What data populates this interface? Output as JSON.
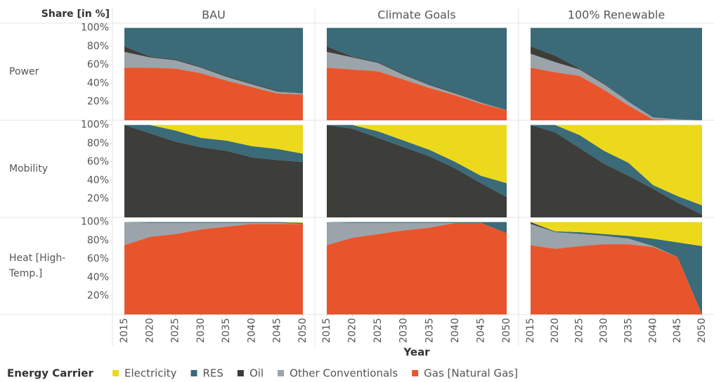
{
  "chart_data": {
    "type": "stacked_area",
    "y_axis_title": "Share [in %]",
    "x_axis_title": "Year",
    "legend_title": "Energy Carrier",
    "columns": [
      "BAU",
      "Climate Goals",
      "100% Renewable"
    ],
    "rows": [
      "Power",
      "Mobility",
      "Heat [High-Temp.]"
    ],
    "x": [
      2015,
      2020,
      2025,
      2030,
      2035,
      2040,
      2045,
      2050
    ],
    "xticks": [
      2015,
      2020,
      2025,
      2030,
      2035,
      2040,
      2045,
      2050
    ],
    "ylim": [
      0,
      105
    ],
    "yticks": [
      {
        "value": 20,
        "label": "20%"
      },
      {
        "value": 40,
        "label": "40%"
      },
      {
        "value": 60,
        "label": "60%"
      },
      {
        "value": 80,
        "label": "80%"
      },
      {
        "value": 100,
        "label": "100%"
      }
    ],
    "grid": false,
    "series": [
      {
        "name": "Electricity",
        "color": "#ecd91c",
        "values": [
          [
            0,
            0,
            0,
            0,
            0,
            0,
            0,
            0
          ],
          [
            0,
            0,
            0,
            0,
            0,
            0,
            0,
            0
          ],
          [
            0,
            0,
            0,
            0,
            0,
            0,
            0,
            0
          ],
          [
            0,
            0,
            6,
            14,
            17,
            23,
            26,
            31
          ],
          [
            0,
            0,
            7,
            17,
            27,
            40,
            55,
            63
          ],
          [
            0,
            0,
            11,
            28,
            41,
            65,
            77,
            87
          ],
          [
            0,
            0,
            0,
            0,
            0,
            0,
            0,
            1
          ],
          [
            0,
            0,
            0,
            0,
            0,
            0,
            0,
            0
          ],
          [
            0,
            10,
            11,
            13,
            15,
            18,
            22,
            26
          ]
        ]
      },
      {
        "name": "RES",
        "color": "#3b6a78",
        "values": [
          [
            20,
            31,
            34,
            42,
            52,
            60,
            68,
            71
          ],
          [
            20,
            31,
            37,
            50,
            61,
            70,
            81,
            89
          ],
          [
            20,
            30,
            44,
            60,
            80,
            97,
            99,
            100
          ],
          [
            0,
            9,
            12,
            10,
            11,
            12,
            12,
            9
          ],
          [
            0,
            4,
            7,
            7,
            7,
            7,
            8,
            15
          ],
          [
            0,
            8,
            14,
            14,
            14,
            4,
            7,
            10
          ],
          [
            0,
            1,
            1,
            1,
            1,
            1,
            1,
            1
          ],
          [
            0,
            1,
            1,
            1,
            1,
            1,
            1,
            12
          ],
          [
            0,
            1,
            2,
            2,
            3,
            8,
            16,
            74
          ]
        ]
      },
      {
        "name": "Oil",
        "color": "#3d3d3a",
        "values": [
          [
            6,
            1,
            1,
            1,
            1,
            1,
            1,
            0
          ],
          [
            6,
            1,
            1,
            1,
            1,
            1,
            0,
            0
          ],
          [
            8,
            7,
            1,
            1,
            0,
            0,
            0,
            0
          ],
          [
            100,
            91,
            82,
            76,
            72,
            65,
            62,
            60
          ],
          [
            100,
            96,
            86,
            76,
            66,
            53,
            37,
            22
          ],
          [
            100,
            92,
            75,
            58,
            45,
            31,
            16,
            3
          ],
          [
            0,
            0,
            0,
            0,
            0,
            0,
            0,
            0
          ],
          [
            0,
            0,
            0,
            0,
            0,
            0,
            0,
            0
          ],
          [
            2,
            0,
            0,
            0,
            0,
            0,
            0,
            0
          ]
        ]
      },
      {
        "name": "Other Conventionals",
        "color": "#9aa4aa",
        "values": [
          [
            17,
            11,
            9,
            6,
            4,
            3,
            2,
            1
          ],
          [
            17,
            13,
            9,
            5,
            3,
            2,
            1,
            0
          ],
          [
            15,
            11,
            7,
            6,
            4,
            2,
            1,
            0
          ],
          [
            0,
            0,
            0,
            0,
            0,
            0,
            0,
            0
          ],
          [
            0,
            0,
            0,
            0,
            0,
            0,
            0,
            0
          ],
          [
            0,
            0,
            0,
            0,
            0,
            0,
            0,
            0
          ],
          [
            25,
            15,
            12,
            7,
            4,
            1,
            1,
            0
          ],
          [
            25,
            16,
            12,
            8,
            5,
            0,
            0,
            0
          ],
          [
            23,
            18,
            13,
            9,
            6,
            1,
            0,
            0
          ]
        ]
      },
      {
        "name": "Gas [Natural Gas]",
        "color": "#e8552d",
        "values": [
          [
            57,
            57,
            56,
            51,
            43,
            36,
            29,
            28
          ],
          [
            57,
            55,
            53,
            44,
            35,
            27,
            18,
            11
          ],
          [
            57,
            52,
            48,
            33,
            16,
            1,
            0,
            0
          ],
          [
            0,
            0,
            0,
            0,
            0,
            0,
            0,
            0
          ],
          [
            0,
            0,
            0,
            0,
            0,
            0,
            0,
            0
          ],
          [
            0,
            0,
            0,
            0,
            0,
            0,
            0,
            0
          ],
          [
            75,
            84,
            87,
            92,
            95,
            98,
            98,
            98
          ],
          [
            75,
            83,
            87,
            91,
            94,
            99,
            99,
            88
          ],
          [
            75,
            71,
            74,
            76,
            76,
            73,
            62,
            0
          ]
        ]
      }
    ]
  }
}
